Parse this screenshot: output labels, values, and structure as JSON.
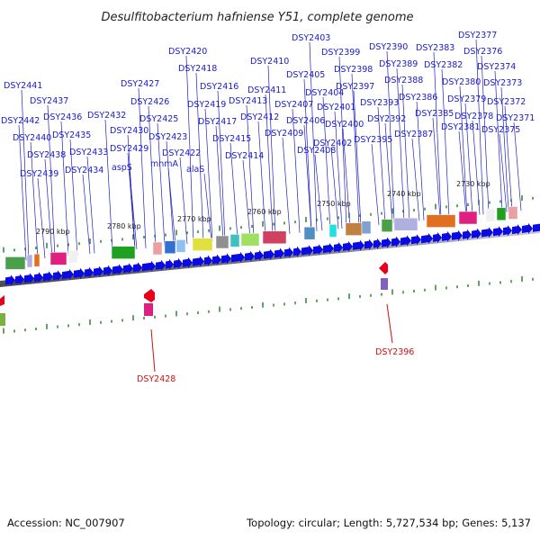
{
  "title": "Desulfitobacterium hafniense Y51, complete genome",
  "footer": {
    "accession": "Accession: NC_007907",
    "stats": "Topology: circular; Length: 5,727,534 bp; Genes: 5,137"
  },
  "kbp_ticks": [
    "2790 kbp",
    "2780 kbp",
    "2770 kbp",
    "2760 kbp",
    "2750 kbp",
    "2740 kbp",
    "2730 kbp"
  ],
  "gene_labels": [
    "DSY2441",
    "DSY2437",
    "DSY2442",
    "DSY2436",
    "DSY2440",
    "DSY2435",
    "DSY2438",
    "DSY2433",
    "DSY2439",
    "DSY2434",
    "DSY2432",
    "DSY2427",
    "DSY2426",
    "DSY2425",
    "DSY2430",
    "DSY2429",
    "aspS",
    "DSY2420",
    "DSY2418",
    "DSY2416",
    "DSY2419",
    "DSY2417",
    "DSY2423",
    "mnmA",
    "DSY2422",
    "alaS",
    "DSY2415",
    "DSY2410",
    "DSY2411",
    "DSY2413",
    "DSY2412",
    "DSY2409",
    "DSY2414",
    "DSY2403",
    "DSY2405",
    "DSY2404",
    "DSY2407",
    "DSY2406",
    "DSY2408",
    "DSY2399",
    "DSY2398",
    "DSY2401",
    "DSY2397",
    "DSY2400",
    "DSY2402",
    "DSY2390",
    "DSY2389",
    "DSY2388",
    "DSY2393",
    "DSY2392",
    "DSY2395",
    "DSY2386",
    "DSY2387",
    "DSY2383",
    "DSY2382",
    "DSY2385",
    "DSY2377",
    "DSY2376",
    "DSY2374",
    "DSY2380",
    "DSY2373",
    "DSY2379",
    "DSY2378",
    "DSY2372",
    "DSY2381",
    "DSY2371",
    "DSY2375"
  ],
  "reverse_labels": [
    "DSY2428",
    "DSY2396"
  ],
  "colors": {
    "forward_gene": "#0a0ae6",
    "reverse_gene": "#e8001a",
    "label_blue": "#1a1acc",
    "label_red": "#cc1111",
    "backbone": "#808080",
    "ticks": "#1f7a1f"
  }
}
